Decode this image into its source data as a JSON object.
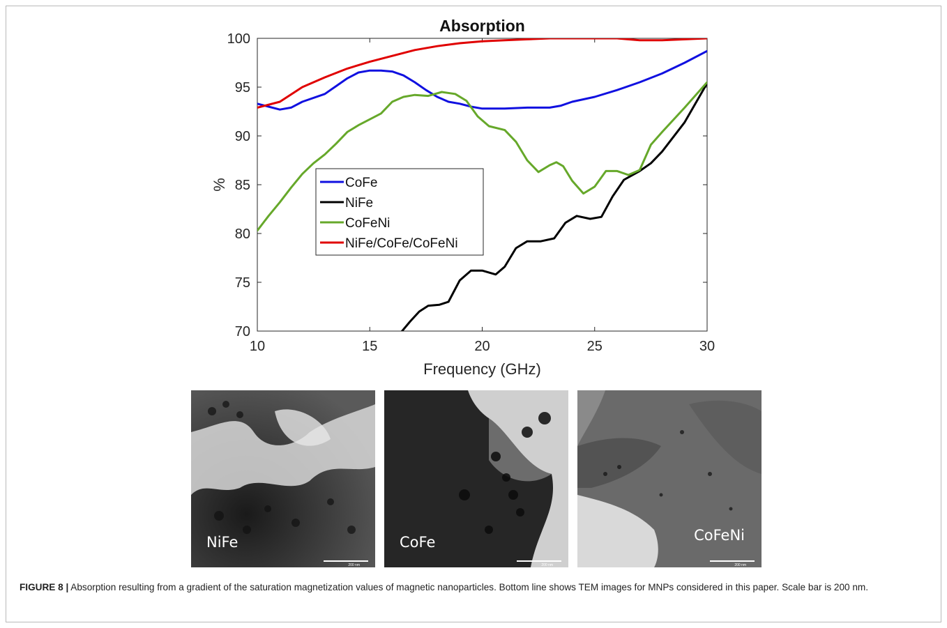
{
  "chart_data": {
    "type": "line",
    "title": "Absorption",
    "xlabel": "Frequency (GHz)",
    "ylabel": "%",
    "xlim": [
      10,
      30
    ],
    "ylim": [
      70,
      100
    ],
    "xticks": [
      10,
      15,
      20,
      25,
      30
    ],
    "yticks": [
      70,
      75,
      80,
      85,
      90,
      95,
      100
    ],
    "legend": "inside, center-left",
    "grid": false,
    "series": [
      {
        "name": "CoFe",
        "color": "#1010e0",
        "points": [
          [
            10,
            93.3
          ],
          [
            10.5,
            93.0
          ],
          [
            11,
            92.7
          ],
          [
            11.5,
            92.9
          ],
          [
            12,
            93.5
          ],
          [
            13,
            94.3
          ],
          [
            13.5,
            95.1
          ],
          [
            14,
            95.9
          ],
          [
            14.5,
            96.5
          ],
          [
            15,
            96.7
          ],
          [
            15.5,
            96.7
          ],
          [
            16,
            96.6
          ],
          [
            16.5,
            96.2
          ],
          [
            17,
            95.5
          ],
          [
            17.5,
            94.7
          ],
          [
            18,
            94.0
          ],
          [
            18.5,
            93.5
          ],
          [
            19,
            93.3
          ],
          [
            19.5,
            93.0
          ],
          [
            20,
            92.8
          ],
          [
            21,
            92.8
          ],
          [
            22,
            92.9
          ],
          [
            23,
            92.9
          ],
          [
            23.5,
            93.1
          ],
          [
            24,
            93.5
          ],
          [
            25,
            94.0
          ],
          [
            26,
            94.7
          ],
          [
            27,
            95.5
          ],
          [
            28,
            96.4
          ],
          [
            29,
            97.5
          ],
          [
            30,
            98.7
          ]
        ]
      },
      {
        "name": "NiFe",
        "color": "#000000",
        "points": [
          [
            16.4,
            69.9
          ],
          [
            16.8,
            71.0
          ],
          [
            17.2,
            72.0
          ],
          [
            17.6,
            72.6
          ],
          [
            18.1,
            72.7
          ],
          [
            18.5,
            73.0
          ],
          [
            19,
            75.2
          ],
          [
            19.5,
            76.2
          ],
          [
            20,
            76.2
          ],
          [
            20.6,
            75.8
          ],
          [
            21,
            76.6
          ],
          [
            21.5,
            78.5
          ],
          [
            22,
            79.2
          ],
          [
            22.6,
            79.2
          ],
          [
            23.2,
            79.5
          ],
          [
            23.7,
            81.1
          ],
          [
            24.2,
            81.8
          ],
          [
            24.8,
            81.5
          ],
          [
            25.3,
            81.7
          ],
          [
            25.8,
            83.8
          ],
          [
            26.3,
            85.5
          ],
          [
            27,
            86.4
          ],
          [
            27.5,
            87.2
          ],
          [
            28,
            88.4
          ],
          [
            29,
            91.4
          ],
          [
            30,
            95.4
          ]
        ]
      },
      {
        "name": "CoFeNi",
        "color": "#66a82a",
        "points": [
          [
            10,
            80.3
          ],
          [
            10.5,
            81.8
          ],
          [
            11,
            83.2
          ],
          [
            11.5,
            84.7
          ],
          [
            12,
            86.1
          ],
          [
            12.5,
            87.2
          ],
          [
            13,
            88.1
          ],
          [
            13.5,
            89.2
          ],
          [
            14,
            90.4
          ],
          [
            14.5,
            91.1
          ],
          [
            15,
            91.7
          ],
          [
            15.5,
            92.3
          ],
          [
            16,
            93.5
          ],
          [
            16.5,
            94.0
          ],
          [
            17,
            94.2
          ],
          [
            17.6,
            94.1
          ],
          [
            18.2,
            94.5
          ],
          [
            18.8,
            94.3
          ],
          [
            19.3,
            93.6
          ],
          [
            19.8,
            92.0
          ],
          [
            20.3,
            91.0
          ],
          [
            21,
            90.6
          ],
          [
            21.5,
            89.4
          ],
          [
            22,
            87.5
          ],
          [
            22.5,
            86.3
          ],
          [
            23,
            87.0
          ],
          [
            23.3,
            87.3
          ],
          [
            23.6,
            86.9
          ],
          [
            24,
            85.4
          ],
          [
            24.5,
            84.1
          ],
          [
            25,
            84.8
          ],
          [
            25.5,
            86.4
          ],
          [
            26,
            86.4
          ],
          [
            26.5,
            86.0
          ],
          [
            27,
            86.5
          ],
          [
            27.5,
            89.1
          ],
          [
            28,
            90.4
          ],
          [
            29,
            92.9
          ],
          [
            30,
            95.5
          ]
        ]
      },
      {
        "name": "NiFe/CoFe/CoFeNi",
        "color": "#e00000",
        "points": [
          [
            10,
            92.9
          ],
          [
            11,
            93.5
          ],
          [
            12,
            95.0
          ],
          [
            13,
            96.0
          ],
          [
            14,
            96.9
          ],
          [
            15,
            97.6
          ],
          [
            16,
            98.2
          ],
          [
            17,
            98.8
          ],
          [
            18,
            99.2
          ],
          [
            19,
            99.5
          ],
          [
            20,
            99.7
          ],
          [
            21,
            99.8
          ],
          [
            22,
            99.9
          ],
          [
            23,
            100
          ],
          [
            24,
            100
          ],
          [
            25,
            100
          ],
          [
            26,
            100
          ],
          [
            27,
            99.8
          ],
          [
            28,
            99.8
          ],
          [
            29,
            99.9
          ],
          [
            30,
            100
          ]
        ]
      }
    ]
  },
  "images": [
    {
      "label": "NiFe",
      "scale": "200 nm"
    },
    {
      "label": "CoFe",
      "scale": "200 nm"
    },
    {
      "label": "CoFeNi",
      "scale": "200 nm"
    }
  ],
  "caption": {
    "figure_label": "FIGURE 8 |",
    "text": " Absorption resulting from a gradient of the saturation magnetization values of magnetic nanoparticles. Bottom line shows TEM images for MNPs considered in this paper. Scale bar is 200 nm."
  }
}
